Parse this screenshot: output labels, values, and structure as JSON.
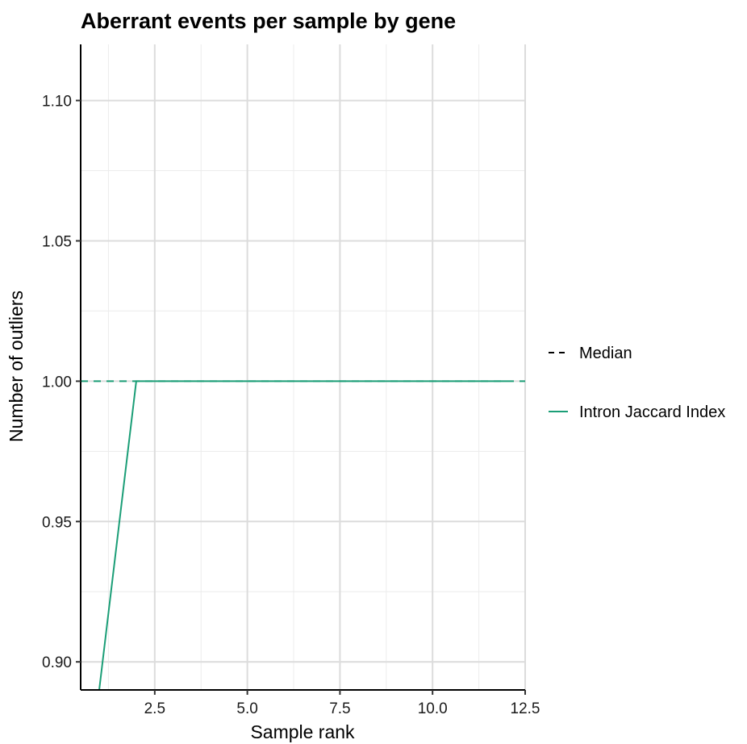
{
  "chart_data": {
    "type": "line",
    "title": "Aberrant events per sample by gene",
    "xlabel": "Sample rank",
    "ylabel": "Number of outliers",
    "xlim": [
      0.5,
      12.5
    ],
    "ylim": [
      0.89,
      1.12
    ],
    "x_ticks": [
      2.5,
      5.0,
      7.5,
      10.0,
      12.5
    ],
    "x_tick_labels": [
      "2.5",
      "5.0",
      "7.5",
      "10.0",
      "12.5"
    ],
    "y_ticks": [
      0.9,
      0.95,
      1.0,
      1.05,
      1.1
    ],
    "y_tick_labels": [
      "0.90",
      "0.95",
      "1.00",
      "1.05",
      "1.10"
    ],
    "grid": true,
    "legend_position": "right",
    "series": [
      {
        "name": "Intron Jaccard Index",
        "color": "#1b9e77",
        "style": "solid",
        "x": [
          1,
          2,
          3,
          4,
          5,
          6,
          7,
          8,
          9,
          10,
          11,
          12
        ],
        "values": [
          0.89,
          1,
          1,
          1,
          1,
          1,
          1,
          1,
          1,
          1,
          1,
          1
        ]
      }
    ],
    "reference_lines": [
      {
        "name": "Median",
        "orientation": "horizontal",
        "value": 1.0,
        "style": "dashed",
        "color": "#1b9e77"
      }
    ],
    "legend": [
      {
        "label": "Median",
        "style": "dashed",
        "color": "#000000"
      },
      {
        "label": "Intron Jaccard Index",
        "style": "solid",
        "color": "#1b9e77"
      }
    ]
  }
}
